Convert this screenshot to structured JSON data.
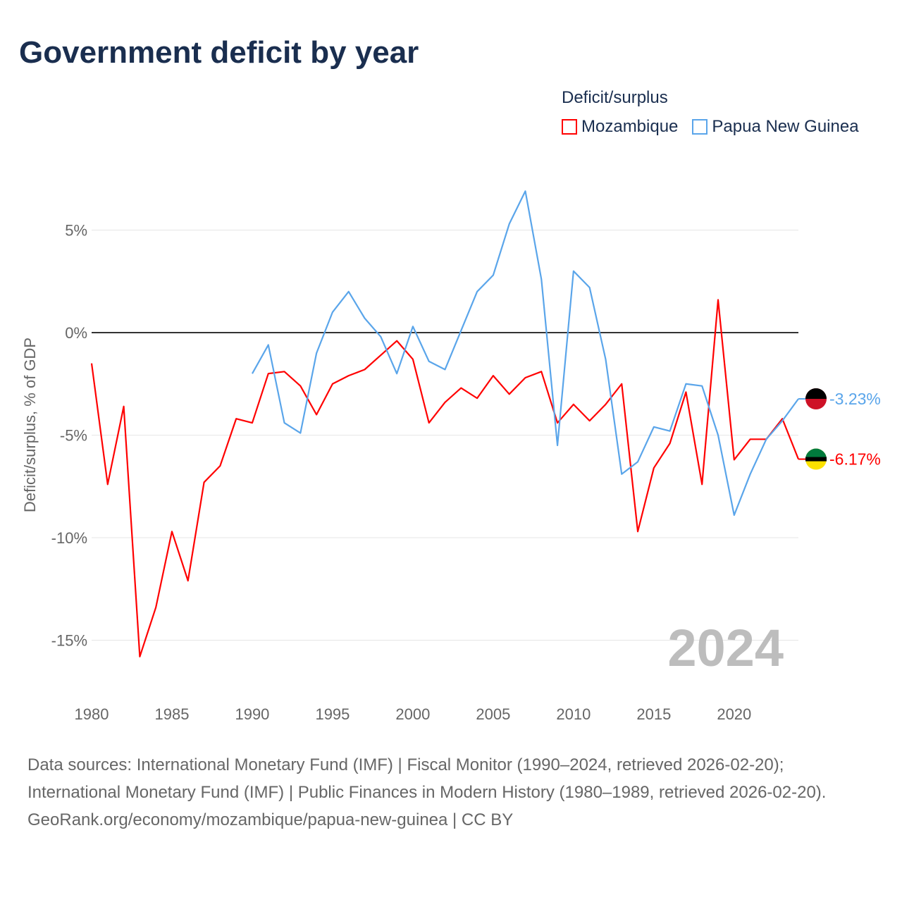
{
  "title": "Government deficit by year",
  "legend": {
    "title": "Deficit/surplus"
  },
  "colors": {
    "Mozambique": "#ff0000",
    "Papua New Guinea": "#5aa5ea"
  },
  "chart_data": {
    "type": "line",
    "title": "Government deficit by year",
    "xlabel": "",
    "ylabel": "Deficit/surplus, % of GDP",
    "xlim": [
      1980,
      2024
    ],
    "ylim": [
      -17,
      7.5
    ],
    "x_ticks": [
      1980,
      1985,
      1990,
      1995,
      2000,
      2005,
      2010,
      2015,
      2020
    ],
    "y_ticks": [
      5,
      0,
      -5,
      -10,
      -15
    ],
    "y_tick_labels": [
      "5%",
      "0%",
      "-5%",
      "-10%",
      "-15%"
    ],
    "x_tick_labels": [
      "1980",
      "1985",
      "1990",
      "1995",
      "2000",
      "2005",
      "2010",
      "2015",
      "2020"
    ],
    "year_watermark": "2024",
    "legend_position": "top-right",
    "series": [
      {
        "name": "Mozambique",
        "end_label": "-6.17%",
        "x": [
          1980,
          1981,
          1982,
          1983,
          1984,
          1985,
          1986,
          1987,
          1988,
          1989,
          1990,
          1991,
          1992,
          1993,
          1994,
          1995,
          1996,
          1997,
          1998,
          1999,
          2000,
          2001,
          2002,
          2003,
          2004,
          2005,
          2006,
          2007,
          2008,
          2009,
          2010,
          2011,
          2012,
          2013,
          2014,
          2015,
          2016,
          2017,
          2018,
          2019,
          2020,
          2021,
          2022,
          2023,
          2024
        ],
        "values": [
          -1.5,
          -7.4,
          -3.6,
          -15.8,
          -13.4,
          -9.7,
          -12.1,
          -7.3,
          -6.5,
          -4.2,
          -4.4,
          -2.0,
          -1.9,
          -2.6,
          -4.0,
          -2.5,
          -2.1,
          -1.8,
          -1.1,
          -0.4,
          -1.3,
          -4.4,
          -3.4,
          -2.7,
          -3.2,
          -2.1,
          -3.0,
          -2.2,
          -1.9,
          -4.4,
          -3.5,
          -4.3,
          -3.5,
          -2.5,
          -9.7,
          -6.6,
          -5.4,
          -2.9,
          -7.4,
          1.6,
          -6.2,
          -5.2,
          -5.2,
          -4.2,
          -6.17
        ]
      },
      {
        "name": "Papua New Guinea",
        "end_label": "-3.23%",
        "x": [
          1990,
          1991,
          1992,
          1993,
          1994,
          1995,
          1996,
          1997,
          1998,
          1999,
          2000,
          2001,
          2002,
          2003,
          2004,
          2005,
          2006,
          2007,
          2008,
          2009,
          2010,
          2011,
          2012,
          2013,
          2014,
          2015,
          2016,
          2017,
          2018,
          2019,
          2020,
          2021,
          2022,
          2023,
          2024
        ],
        "values": [
          -2.0,
          -0.6,
          -4.4,
          -4.9,
          -1.0,
          1.0,
          2.0,
          0.7,
          -0.2,
          -2.0,
          0.3,
          -1.4,
          -1.8,
          0.1,
          2.0,
          2.8,
          5.3,
          6.9,
          2.6,
          -5.5,
          3.0,
          2.2,
          -1.3,
          -6.9,
          -6.3,
          -4.6,
          -4.8,
          -2.5,
          -2.6,
          -5.0,
          -8.9,
          -6.9,
          -5.2,
          -4.3,
          -3.23
        ]
      }
    ]
  },
  "footer": {
    "line1": "Data sources: International Monetary Fund (IMF) | Fiscal Monitor (1990–2024, retrieved 2026-02-20); International Monetary Fund (IMF) | Public Finances in Modern History (1980–1989, retrieved 2026-02-20).",
    "line2": "GeoRank.org/economy/mozambique/papua-new-guinea | CC BY"
  }
}
